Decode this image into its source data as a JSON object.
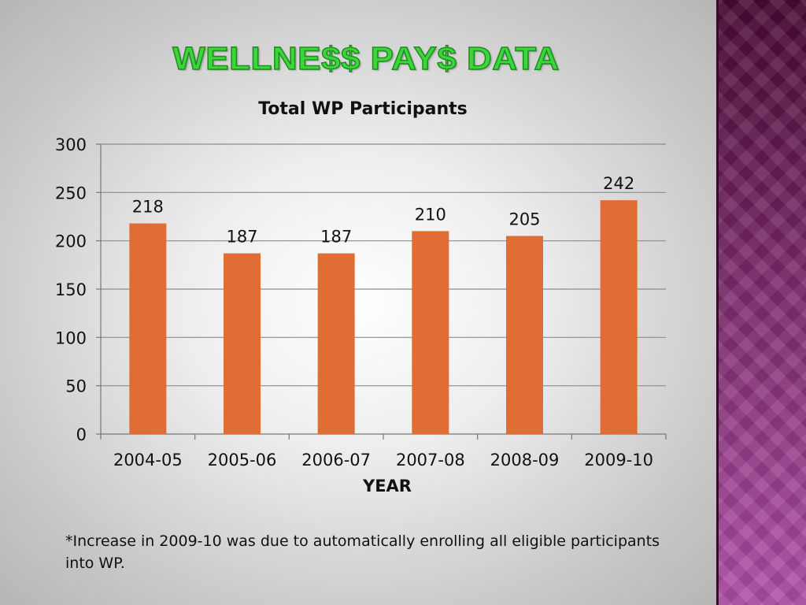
{
  "slide": {
    "title": "WELLNE$$ PAY$ DATA",
    "footnote": "*Increase in 2009-10 was due to automatically enrolling all eligible participants into WP."
  },
  "colors": {
    "bar": "#e06d33",
    "title_green": "#3ad63a",
    "grid": "#8c8c8c"
  },
  "chart_data": {
    "type": "bar",
    "title": "Total WP Participants",
    "xlabel": "YEAR",
    "ylabel": "",
    "categories": [
      "2004-05",
      "2005-06",
      "2006-07",
      "2007-08",
      "2008-09",
      "2009-10"
    ],
    "values": [
      218,
      187,
      187,
      210,
      205,
      242
    ],
    "ylim": [
      0,
      300
    ],
    "yticks": [
      0,
      50,
      100,
      150,
      200,
      250,
      300
    ],
    "grid": true,
    "legend": "none",
    "data_labels": true
  }
}
